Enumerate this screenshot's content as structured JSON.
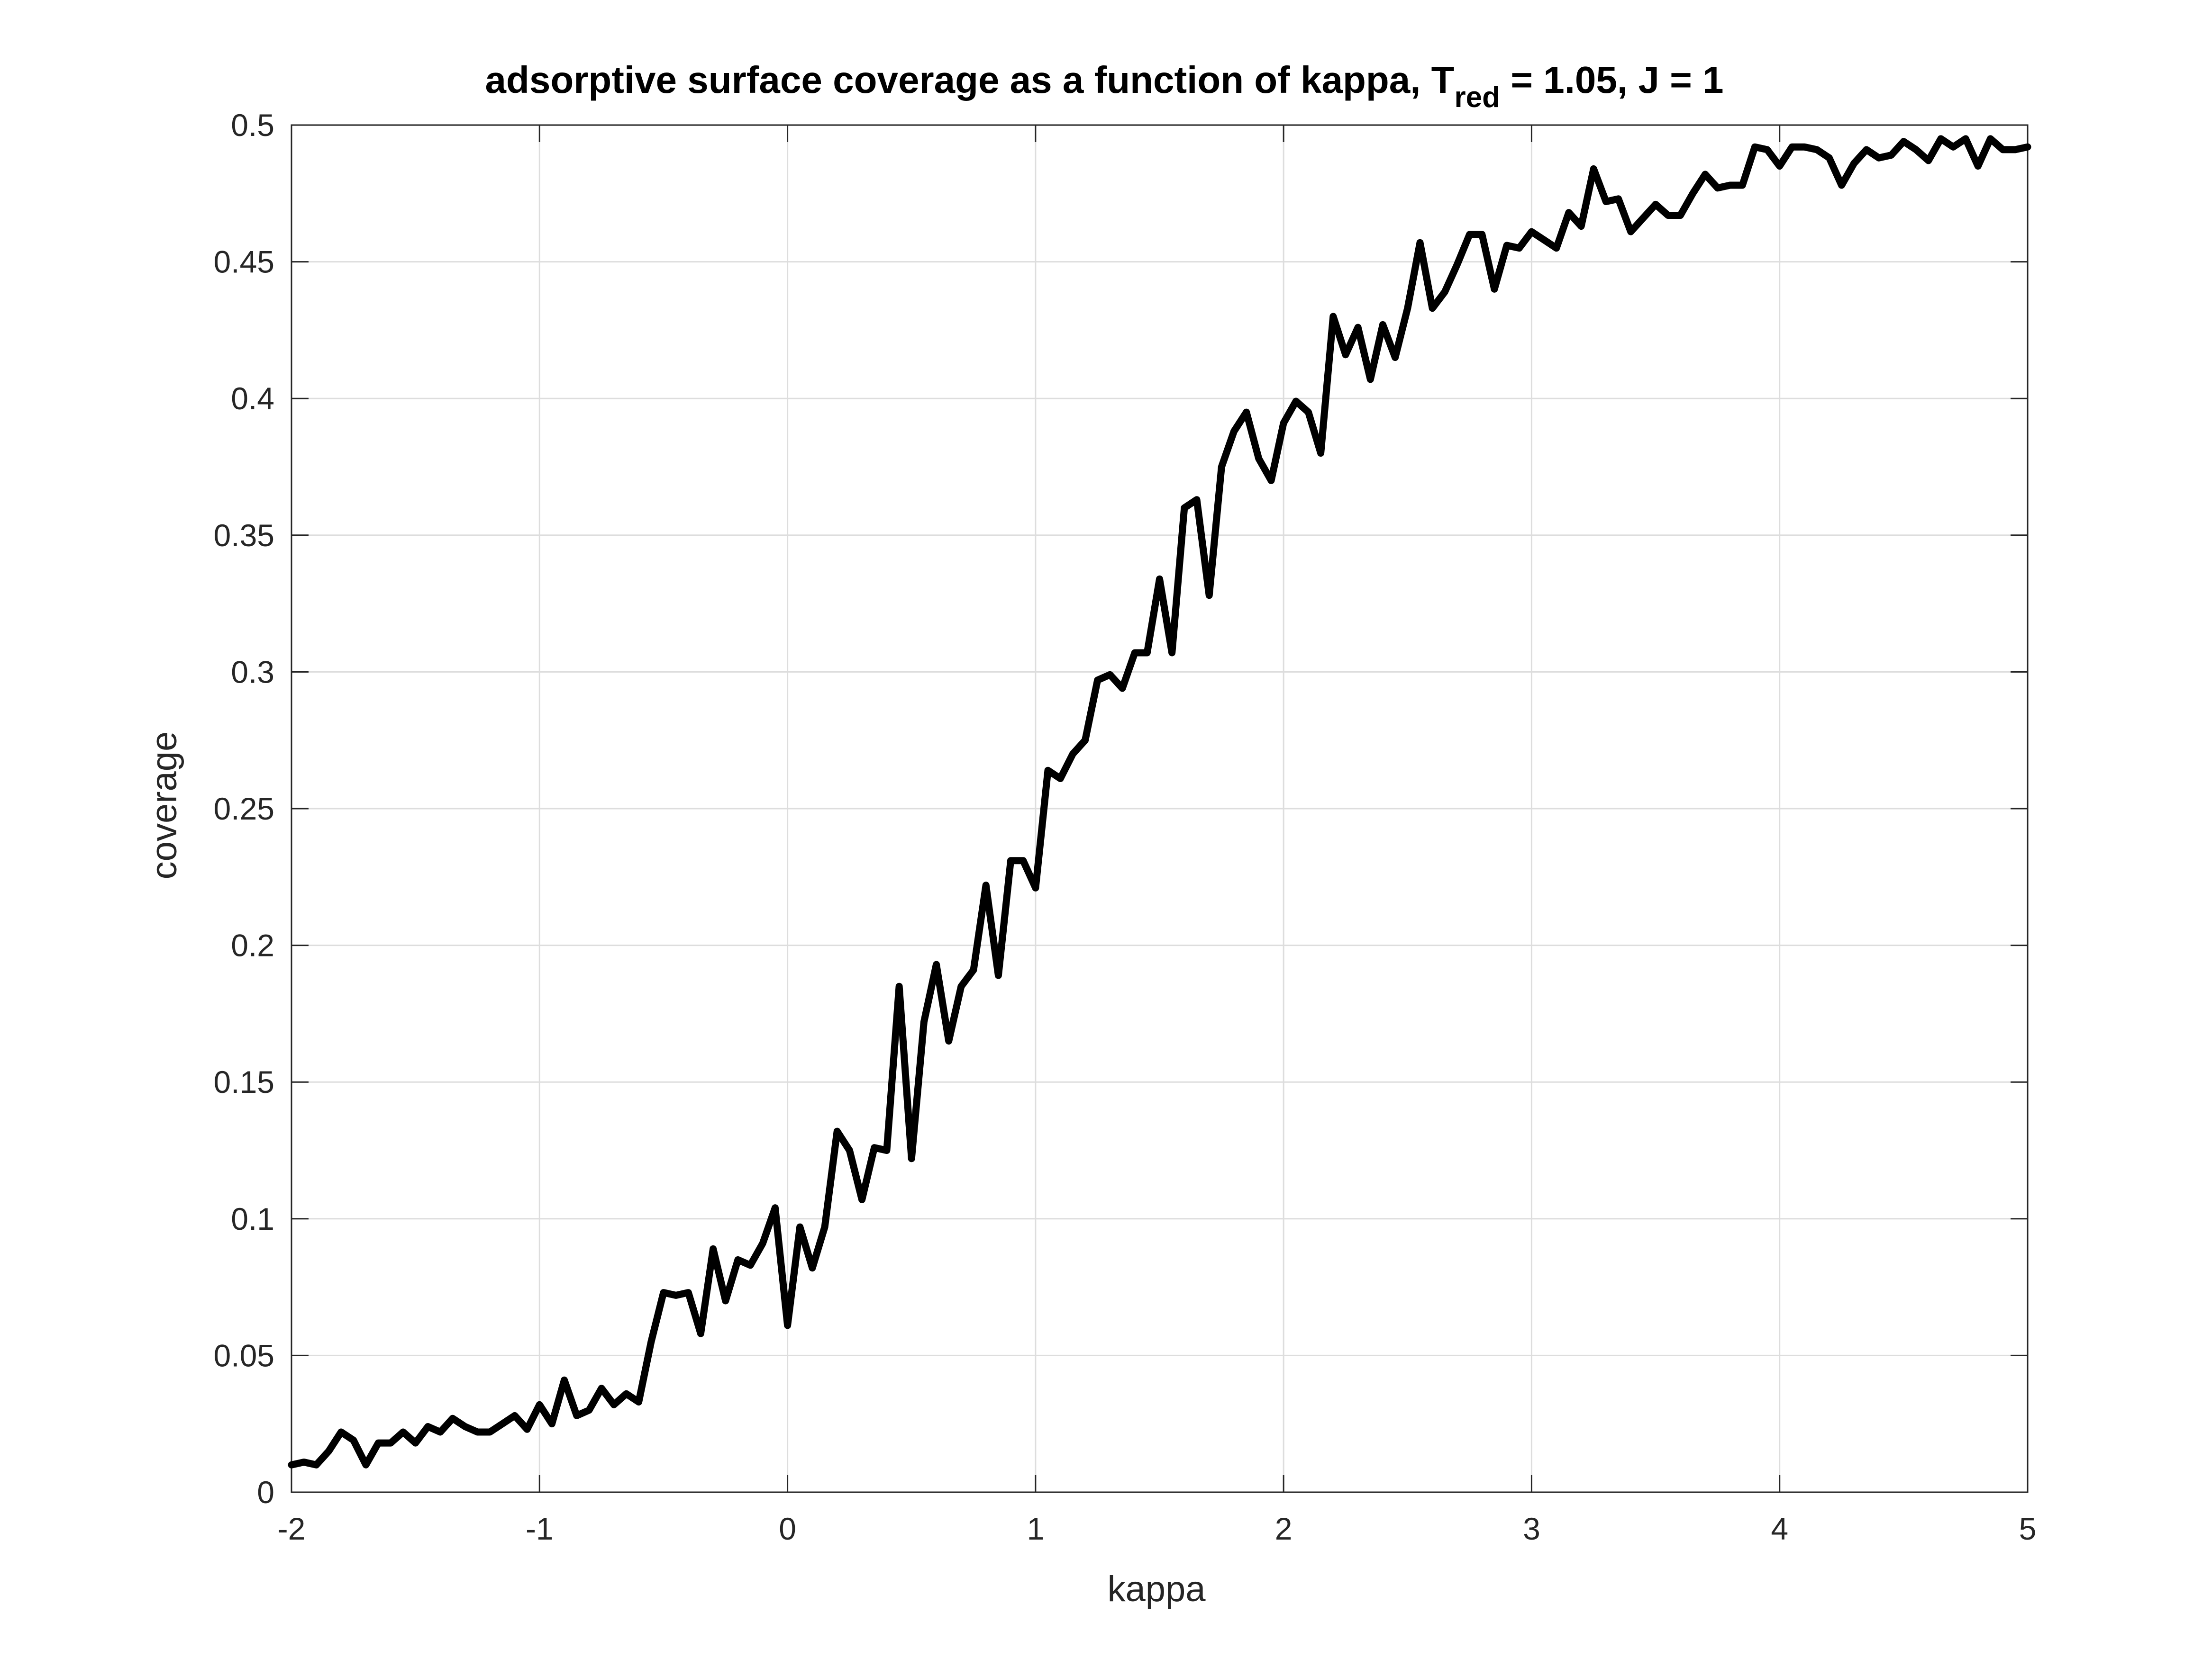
{
  "chart_data": {
    "type": "line",
    "title_main": "adsorptive surface coverage as a function of kappa, T",
    "title_subscript": "red",
    "title_tail": " = 1.05, J = 1",
    "xlabel": "kappa",
    "ylabel": "coverage",
    "xlim": [
      -2,
      5
    ],
    "ylim": [
      0,
      0.5
    ],
    "xticks": [
      -2,
      -1,
      0,
      1,
      2,
      3,
      4,
      5
    ],
    "xtick_labels": [
      "-2",
      "-1",
      "0",
      "1",
      "2",
      "3",
      "4",
      "5"
    ],
    "yticks": [
      0,
      0.05,
      0.1,
      0.15,
      0.2,
      0.25,
      0.3,
      0.35,
      0.4,
      0.45,
      0.5
    ],
    "ytick_labels": [
      "0",
      "0.05",
      "0.1",
      "0.15",
      "0.2",
      "0.25",
      "0.3",
      "0.35",
      "0.4",
      "0.45",
      "0.5"
    ],
    "grid": true,
    "colors": {
      "line": "#000000",
      "grid": "#dddddd",
      "axes": "#262626"
    },
    "series": [
      {
        "x": [
          -2.0,
          -1.95,
          -1.9,
          -1.85,
          -1.8,
          -1.75,
          -1.7,
          -1.65,
          -1.6,
          -1.55,
          -1.5,
          -1.45,
          -1.4,
          -1.35,
          -1.3,
          -1.25,
          -1.2,
          -1.15,
          -1.1,
          -1.05,
          -1.0,
          -0.95,
          -0.9,
          -0.85,
          -0.8,
          -0.75,
          -0.7,
          -0.65,
          -0.6,
          -0.55,
          -0.5,
          -0.45,
          -0.4,
          -0.35,
          -0.3,
          -0.25,
          -0.2,
          -0.15,
          -0.1,
          -0.05,
          0.0,
          0.05,
          0.1,
          0.15,
          0.2,
          0.25,
          0.3,
          0.35,
          0.4,
          0.45,
          0.5,
          0.55,
          0.6,
          0.65,
          0.7,
          0.75,
          0.8,
          0.85,
          0.9,
          0.95,
          1.0,
          1.05,
          1.1,
          1.15,
          1.2,
          1.25,
          1.3,
          1.35,
          1.4,
          1.45,
          1.5,
          1.55,
          1.6,
          1.65,
          1.7,
          1.75,
          1.8,
          1.85,
          1.9,
          1.95,
          2.0,
          2.05,
          2.1,
          2.15,
          2.2,
          2.25,
          2.3,
          2.35,
          2.4,
          2.45,
          2.5,
          2.55,
          2.6,
          2.65,
          2.7,
          2.75,
          2.8,
          2.85,
          2.9,
          2.95,
          3.0,
          3.05,
          3.1,
          3.15,
          3.2,
          3.25,
          3.3,
          3.35,
          3.4,
          3.45,
          3.5,
          3.55,
          3.6,
          3.65,
          3.7,
          3.75,
          3.8,
          3.85,
          3.9,
          3.95,
          4.0,
          4.05,
          4.1,
          4.15,
          4.2,
          4.25,
          4.3,
          4.35,
          4.4,
          4.45,
          4.5,
          4.55,
          4.6,
          4.65,
          4.7,
          4.75,
          4.8,
          4.85,
          4.9,
          4.95,
          5.0
        ],
        "values": [
          0.01,
          0.011,
          0.01,
          0.015,
          0.022,
          0.019,
          0.01,
          0.018,
          0.018,
          0.022,
          0.018,
          0.024,
          0.022,
          0.027,
          0.024,
          0.022,
          0.022,
          0.025,
          0.028,
          0.023,
          0.032,
          0.025,
          0.041,
          0.028,
          0.03,
          0.038,
          0.032,
          0.036,
          0.033,
          0.055,
          0.073,
          0.072,
          0.073,
          0.058,
          0.089,
          0.07,
          0.085,
          0.083,
          0.091,
          0.104,
          0.061,
          0.097,
          0.082,
          0.097,
          0.132,
          0.125,
          0.107,
          0.126,
          0.125,
          0.185,
          0.122,
          0.172,
          0.193,
          0.165,
          0.185,
          0.191,
          0.222,
          0.189,
          0.231,
          0.231,
          0.221,
          0.264,
          0.261,
          0.27,
          0.275,
          0.297,
          0.299,
          0.294,
          0.307,
          0.307,
          0.334,
          0.307,
          0.36,
          0.363,
          0.328,
          0.375,
          0.388,
          0.395,
          0.378,
          0.37,
          0.391,
          0.399,
          0.395,
          0.38,
          0.43,
          0.416,
          0.426,
          0.407,
          0.427,
          0.415,
          0.433,
          0.457,
          0.433,
          0.439,
          0.449,
          0.46,
          0.46,
          0.44,
          0.456,
          0.455,
          0.461,
          0.458,
          0.455,
          0.468,
          0.463,
          0.484,
          0.472,
          0.473,
          0.461,
          0.466,
          0.471,
          0.467,
          0.467,
          0.475,
          0.482,
          0.477,
          0.478,
          0.478,
          0.492,
          0.491,
          0.485,
          0.492,
          0.492,
          0.491,
          0.488,
          0.478,
          0.486,
          0.491,
          0.488,
          0.489,
          0.494,
          0.491,
          0.487,
          0.495,
          0.492,
          0.495,
          0.485,
          0.495,
          0.491,
          0.491,
          0.492
        ]
      }
    ]
  }
}
